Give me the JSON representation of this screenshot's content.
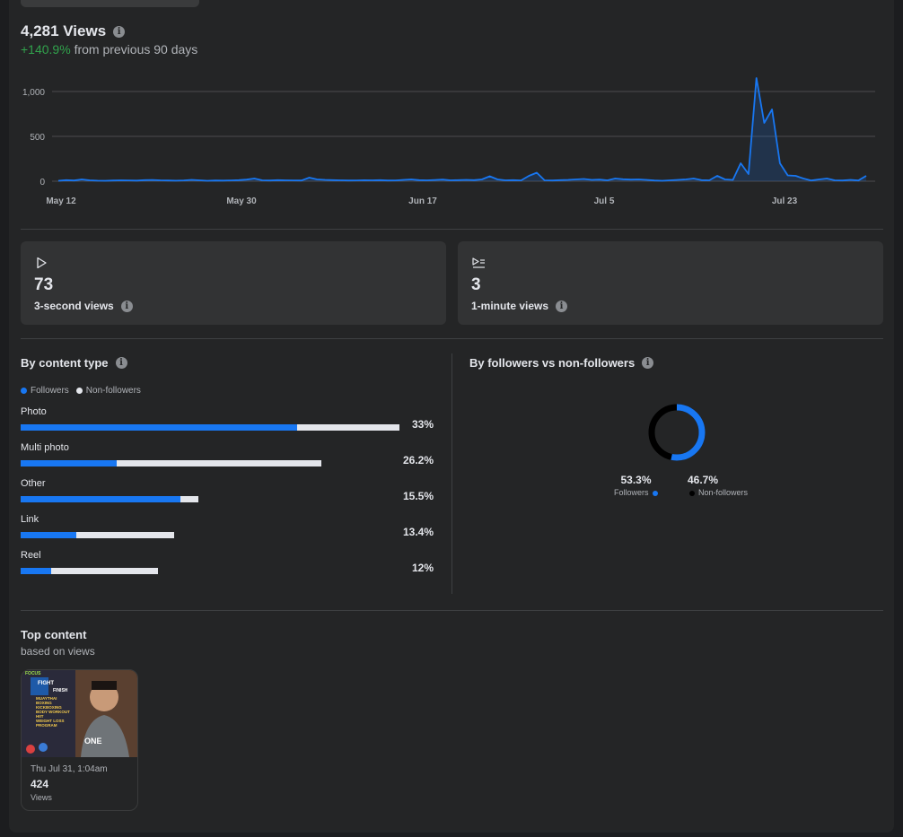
{
  "summary": {
    "views": "4,281 Views",
    "change": "+140.9%",
    "change_suffix": "from previous 90 days"
  },
  "chart_data": {
    "type": "line",
    "x_tick_labels": [
      "May 12",
      "May 30",
      "Jun 17",
      "Jul 5",
      "Jul 23"
    ],
    "y_tick_labels": [
      "1,000",
      "500",
      "0"
    ],
    "ylim": [
      0,
      1000
    ],
    "grid": true,
    "series": [
      {
        "color": "#1877f2",
        "values": [
          5,
          12,
          8,
          20,
          10,
          6,
          5,
          8,
          10,
          9,
          7,
          12,
          14,
          10,
          8,
          6,
          9,
          15,
          10,
          5,
          8,
          7,
          9,
          12,
          18,
          30,
          10,
          8,
          12,
          10,
          9,
          8,
          40,
          20,
          15,
          12,
          10,
          8,
          9,
          11,
          10,
          12,
          8,
          9,
          15,
          20,
          12,
          10,
          14,
          18,
          10,
          12,
          15,
          12,
          20,
          55,
          20,
          10,
          12,
          9,
          60,
          95,
          10,
          8,
          12,
          15,
          20,
          25,
          15,
          18,
          10,
          30,
          22,
          18,
          20,
          15,
          8,
          5,
          10,
          15,
          20,
          30,
          12,
          10,
          60,
          20,
          15,
          200,
          80,
          1150,
          650,
          800,
          200,
          65,
          60,
          30,
          8,
          20,
          30,
          10,
          8,
          15,
          8,
          60
        ]
      }
    ]
  },
  "cards": [
    {
      "value": "73",
      "label": "3-second views",
      "icon": "play-icon"
    },
    {
      "value": "3",
      "label": "1-minute views",
      "icon": "play-list-icon"
    }
  ],
  "content_type": {
    "title": "By content type",
    "legend": [
      "Followers",
      "Non-followers"
    ],
    "colors": {
      "followers": "#1877f2",
      "non_followers": "#e4e6eb"
    },
    "rows": [
      {
        "name": "Photo",
        "pct": "33%",
        "total": 33,
        "followers_frac": 0.73
      },
      {
        "name": "Multi photo",
        "pct": "26.2%",
        "total": 26.2,
        "followers_frac": 0.32
      },
      {
        "name": "Other",
        "pct": "15.5%",
        "total": 15.5,
        "followers_frac": 0.9
      },
      {
        "name": "Link",
        "pct": "13.4%",
        "total": 13.4,
        "followers_frac": 0.36
      },
      {
        "name": "Reel",
        "pct": "12%",
        "total": 12,
        "followers_frac": 0.22
      }
    ]
  },
  "followers_split": {
    "title": "By followers vs non-followers",
    "followers_pct": "53.3%",
    "followers_label": "Followers",
    "non_followers_pct": "46.7%",
    "non_followers_label": "Non-followers",
    "followers_value": 53.3
  },
  "top_content": {
    "title": "Top content",
    "subtitle": "based on views",
    "item": {
      "date": "Thu Jul 31, 1:04am",
      "views": "424",
      "views_label": "Views",
      "thumb_text": [
        "FOCUS",
        "FIGHT",
        "FINISH",
        "MUAYTHAI",
        "BOXING",
        "KICKBOXING",
        "BODY WORKOUT",
        "HIIT",
        "WEIGHT LOSS",
        "PROGRAM",
        "ONE"
      ]
    }
  }
}
